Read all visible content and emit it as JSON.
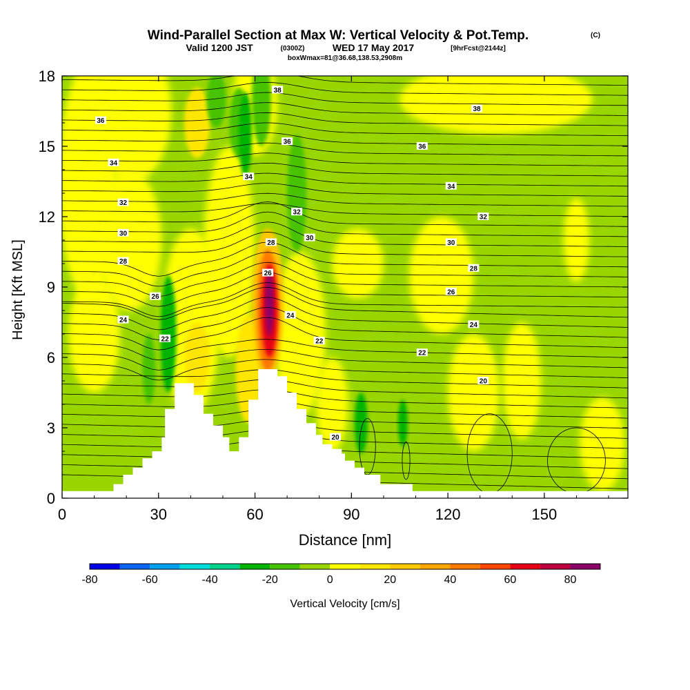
{
  "title": "Wind-Parallel Section at Max W: Vertical Velocity & Pot.Temp.",
  "title_units": "(C)",
  "subtitle_valid": "Valid 1200 JST",
  "subtitle_utc": "(0300Z)",
  "subtitle_date": "WED 17 May 2017",
  "subtitle_fcst": "[9hrFcst@2144z]",
  "subtitle_box": "boxWmax=81@36.68,138.53,2908m",
  "colors": {
    "background": "#ffffff",
    "terrain": "#ffffff",
    "contour": "#000000"
  },
  "chart_data": {
    "type": "heatmap",
    "xlabel": "Distance [nm]",
    "ylabel": "Height [Kft MSL]",
    "xlim": [
      0,
      176
    ],
    "ylim": [
      0,
      18
    ],
    "x_ticks": [
      0,
      30,
      60,
      90,
      120,
      150
    ],
    "y_ticks": [
      0,
      3,
      6,
      9,
      12,
      15,
      18
    ],
    "colorbar": {
      "label": "Vertical Velocity [cm/s]",
      "range": [
        -80,
        90
      ],
      "tick_values": [
        -80,
        -60,
        -40,
        -20,
        0,
        20,
        40,
        60,
        80
      ],
      "tick_labels": [
        "-80",
        "-60",
        "-40",
        "-20",
        "0",
        "20",
        "40",
        "60",
        "80"
      ],
      "bins": [
        {
          "from": -80,
          "to": -70,
          "color": "#0000e6"
        },
        {
          "from": -70,
          "to": -60,
          "color": "#0a64f0"
        },
        {
          "from": -60,
          "to": -50,
          "color": "#00a0ee"
        },
        {
          "from": -50,
          "to": -40,
          "color": "#00dcdc"
        },
        {
          "from": -40,
          "to": -30,
          "color": "#00d28c"
        },
        {
          "from": -30,
          "to": -20,
          "color": "#00b400"
        },
        {
          "from": -20,
          "to": -10,
          "color": "#46c300"
        },
        {
          "from": -10,
          "to": 0,
          "color": "#99d600"
        },
        {
          "from": 0,
          "to": 10,
          "color": "#ffff00"
        },
        {
          "from": 10,
          "to": 20,
          "color": "#ffe600"
        },
        {
          "from": 20,
          "to": 30,
          "color": "#ffc800"
        },
        {
          "from": 30,
          "to": 40,
          "color": "#ffa500"
        },
        {
          "from": 40,
          "to": 50,
          "color": "#ff7800"
        },
        {
          "from": 50,
          "to": 60,
          "color": "#ff4600"
        },
        {
          "from": 60,
          "to": 70,
          "color": "#e60014"
        },
        {
          "from": 70,
          "to": 80,
          "color": "#be0041"
        },
        {
          "from": 80,
          "to": 90,
          "color": "#8c0069"
        }
      ]
    },
    "terrain_profile": [
      [
        0,
        0.3
      ],
      [
        16,
        0.3
      ],
      [
        16,
        0.6
      ],
      [
        19,
        0.6
      ],
      [
        19,
        1.0
      ],
      [
        22,
        1.0
      ],
      [
        22,
        1.3
      ],
      [
        25,
        1.3
      ],
      [
        25,
        1.7
      ],
      [
        28,
        1.7
      ],
      [
        28,
        2.0
      ],
      [
        31,
        2.0
      ],
      [
        31,
        2.6
      ],
      [
        32,
        2.6
      ],
      [
        32,
        3.8
      ],
      [
        35,
        3.8
      ],
      [
        35,
        4.9
      ],
      [
        41,
        4.9
      ],
      [
        41,
        4.4
      ],
      [
        44,
        4.4
      ],
      [
        44,
        3.6
      ],
      [
        47,
        3.6
      ],
      [
        47,
        3.1
      ],
      [
        50,
        3.1
      ],
      [
        50,
        2.6
      ],
      [
        52,
        2.6
      ],
      [
        52,
        2.0
      ],
      [
        55,
        2.0
      ],
      [
        55,
        2.6
      ],
      [
        58,
        2.6
      ],
      [
        58,
        4.2
      ],
      [
        61,
        4.2
      ],
      [
        61,
        5.5
      ],
      [
        67,
        5.5
      ],
      [
        67,
        5.2
      ],
      [
        70,
        5.2
      ],
      [
        70,
        4.5
      ],
      [
        73,
        4.5
      ],
      [
        73,
        3.8
      ],
      [
        76,
        3.8
      ],
      [
        76,
        3.2
      ],
      [
        79,
        3.2
      ],
      [
        79,
        2.7
      ],
      [
        81,
        2.7
      ],
      [
        81,
        2.3
      ],
      [
        84,
        2.3
      ],
      [
        84,
        2.1
      ],
      [
        87,
        2.1
      ],
      [
        87,
        1.9
      ],
      [
        88,
        1.9
      ],
      [
        88,
        1.6
      ],
      [
        91,
        1.6
      ],
      [
        91,
        1.3
      ],
      [
        94,
        1.3
      ],
      [
        94,
        1.0
      ],
      [
        99,
        1.0
      ],
      [
        99,
        0.6
      ],
      [
        109,
        0.6
      ],
      [
        109,
        0.3
      ],
      [
        176,
        0.3
      ]
    ],
    "max_updraft": {
      "x": 64.5,
      "y": 8.5,
      "value": 81
    },
    "theta_contour_labels": [
      {
        "x": 67,
        "y": 17.4,
        "value": "38"
      },
      {
        "x": 129,
        "y": 16.6,
        "value": "38"
      },
      {
        "x": 12,
        "y": 16.1,
        "value": "36"
      },
      {
        "x": 70,
        "y": 15.2,
        "value": "36"
      },
      {
        "x": 112,
        "y": 15.0,
        "value": "36"
      },
      {
        "x": 16,
        "y": 14.3,
        "value": "34"
      },
      {
        "x": 58,
        "y": 13.7,
        "value": "34"
      },
      {
        "x": 121,
        "y": 13.3,
        "value": "34"
      },
      {
        "x": 19,
        "y": 12.6,
        "value": "32"
      },
      {
        "x": 73,
        "y": 12.2,
        "value": "32"
      },
      {
        "x": 131,
        "y": 12.0,
        "value": "32"
      },
      {
        "x": 19,
        "y": 11.3,
        "value": "30"
      },
      {
        "x": 77,
        "y": 11.1,
        "value": "30"
      },
      {
        "x": 121,
        "y": 10.9,
        "value": "30"
      },
      {
        "x": 65,
        "y": 10.9,
        "value": "28"
      },
      {
        "x": 19,
        "y": 10.1,
        "value": "28"
      },
      {
        "x": 128,
        "y": 9.8,
        "value": "28"
      },
      {
        "x": 64,
        "y": 9.6,
        "value": "26"
      },
      {
        "x": 29,
        "y": 8.6,
        "value": "26"
      },
      {
        "x": 121,
        "y": 8.8,
        "value": "26"
      },
      {
        "x": 71,
        "y": 7.8,
        "value": "24"
      },
      {
        "x": 19,
        "y": 7.6,
        "value": "24"
      },
      {
        "x": 128,
        "y": 7.4,
        "value": "24"
      },
      {
        "x": 32,
        "y": 6.8,
        "value": "22"
      },
      {
        "x": 80,
        "y": 6.7,
        "value": "22"
      },
      {
        "x": 112,
        "y": 6.2,
        "value": "22"
      },
      {
        "x": 131,
        "y": 5.0,
        "value": "20"
      },
      {
        "x": 85,
        "y": 2.6,
        "value": "20"
      }
    ]
  }
}
